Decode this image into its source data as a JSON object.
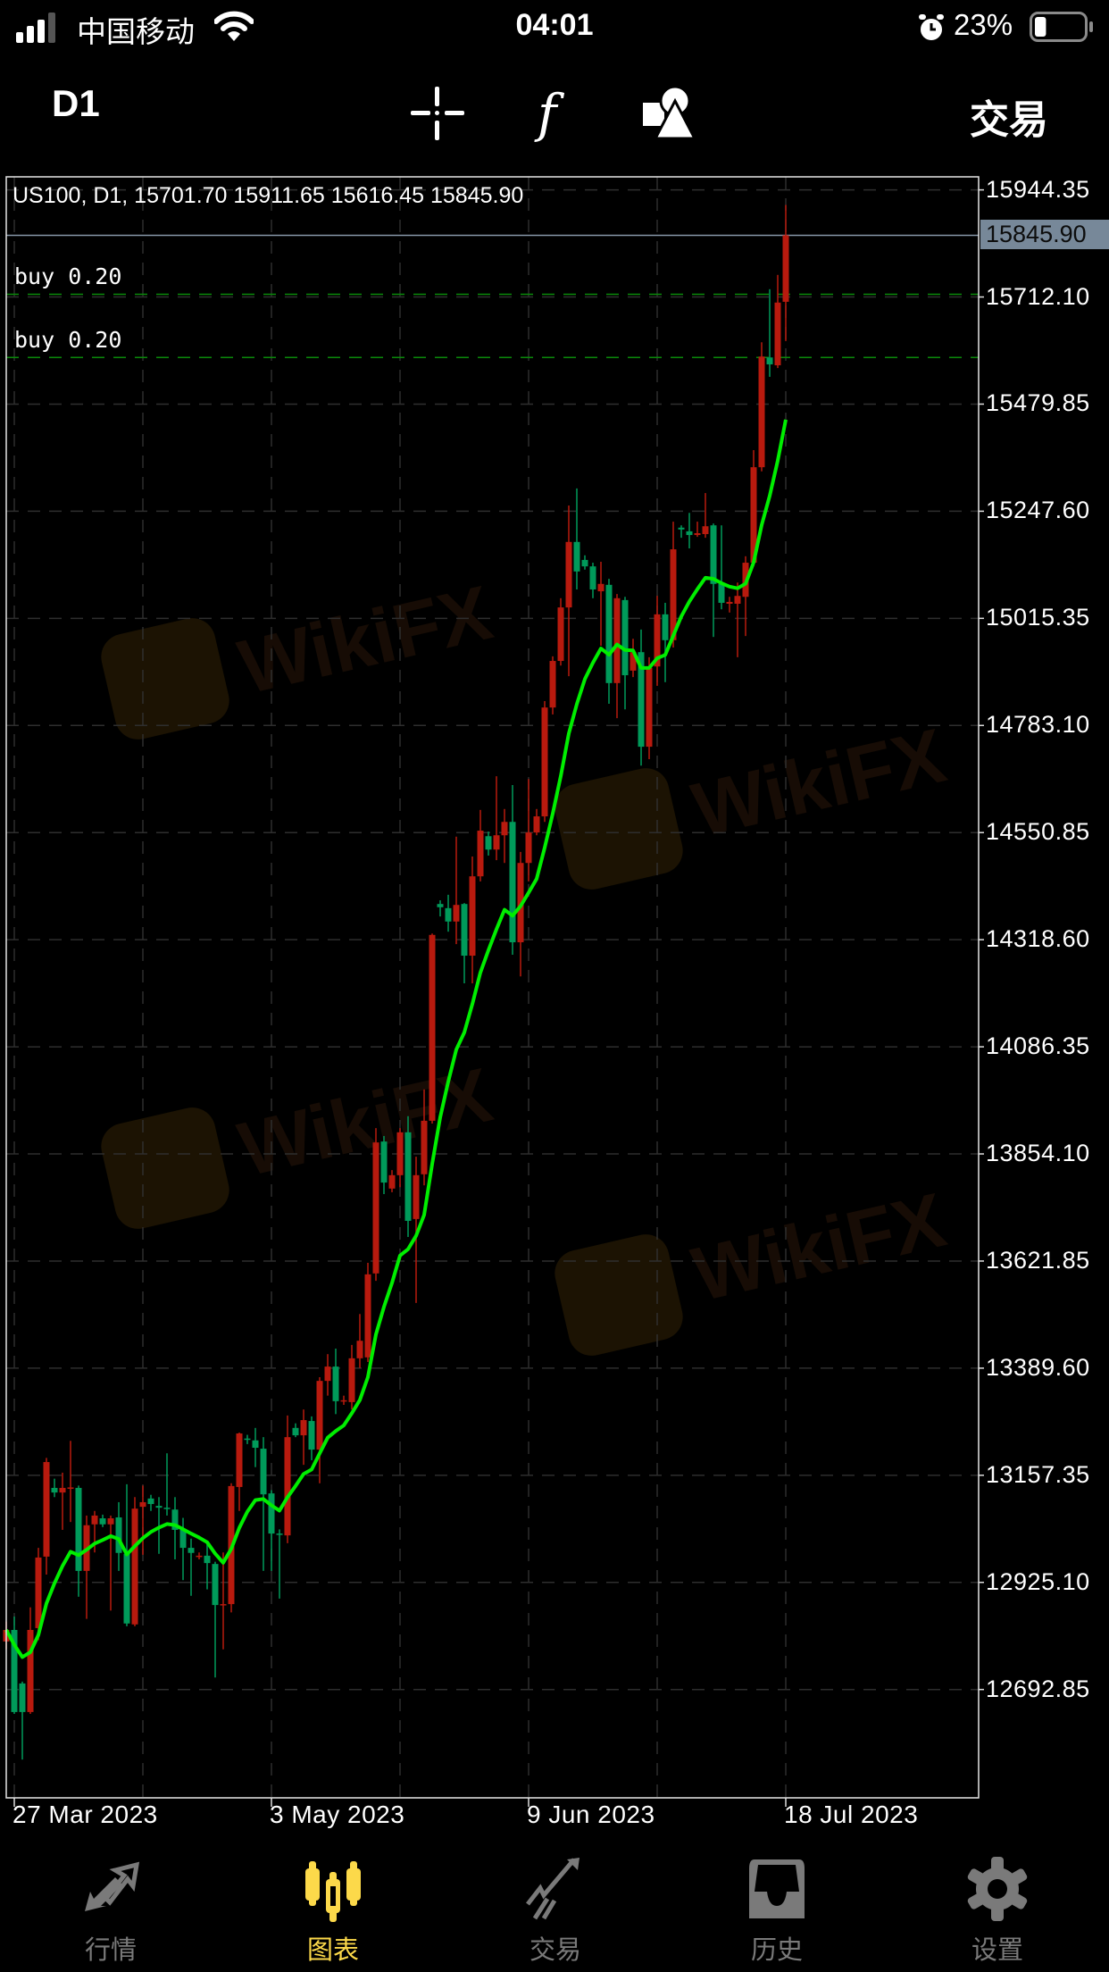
{
  "status_bar": {
    "carrier": "中国移动",
    "time": "04:01",
    "battery_percent": "23%",
    "battery_level": 0.23,
    "signal_bars": 3,
    "icons": [
      "signal-icon",
      "wifi-icon",
      "alarm-icon",
      "battery-icon"
    ]
  },
  "toolbar": {
    "timeframe": "D1",
    "trade_label": "交易",
    "icons": [
      "crosshair-icon",
      "function-icon",
      "objects-icon"
    ]
  },
  "watermark": "WikiFX",
  "colors": {
    "up": "#b81a0e",
    "down": "#009a5a",
    "ma": "#00ee00",
    "buy_line": "#0a8a0a",
    "current_price_bg": "#778899",
    "active_tab": "#fcd94a",
    "inactive_tab": "#7a7a7a"
  },
  "chart_data": {
    "type": "candlestick",
    "title": "US100, D1, 15701.70 15911.65 15616.45 15845.90",
    "symbol": "US100",
    "timeframe": "D1",
    "last_ohlc": {
      "open": "15701.70",
      "high": "15911.65",
      "low": "15616.45",
      "close": "15845.90"
    },
    "current_price": "15845.90",
    "grid": true,
    "y_ticks": [
      "15944.35",
      "15712.10",
      "15479.85",
      "15247.60",
      "15015.35",
      "14783.10",
      "14550.85",
      "14318.60",
      "14086.35",
      "13854.10",
      "13621.85",
      "13389.60",
      "13157.35",
      "12925.10",
      "12692.85"
    ],
    "x_ticks": [
      {
        "label": "27 Mar 2023",
        "bar": 1
      },
      {
        "label": "3 May 2023",
        "bar": 33
      },
      {
        "label": "9 Jun 2023",
        "bar": 65
      },
      {
        "label": "18 Jul 2023",
        "bar": 97
      }
    ],
    "orders": [
      {
        "label": "buy 0.20",
        "price": 15718
      },
      {
        "label": "buy 0.20",
        "price": 15581
      }
    ],
    "indicator": {
      "type": "moving average"
    },
    "ohlc": [
      [
        12797,
        12840,
        12780,
        12822
      ],
      [
        12822,
        12851,
        12640,
        12644
      ],
      [
        12706,
        12710,
        12541,
        12644
      ],
      [
        12644,
        12871,
        12640,
        12822
      ],
      [
        12826,
        13000,
        12800,
        12979
      ],
      [
        12981,
        13195,
        12942,
        13186
      ],
      [
        13130,
        13150,
        13110,
        13120
      ],
      [
        13120,
        13163,
        13039,
        13130
      ],
      [
        13130,
        13232,
        13056,
        13131
      ],
      [
        13130,
        13135,
        12894,
        12950
      ],
      [
        12950,
        13070,
        12846,
        13049
      ],
      [
        13051,
        13080,
        12990,
        13070
      ],
      [
        13064,
        13072,
        13045,
        13051
      ],
      [
        13051,
        13070,
        12864,
        13064
      ],
      [
        13066,
        13099,
        12950,
        12989
      ],
      [
        12987,
        13138,
        12830,
        12836
      ],
      [
        12834,
        13110,
        12830,
        13085
      ],
      [
        13089,
        13135,
        12985,
        13099
      ],
      [
        13107,
        13115,
        13080,
        13095
      ],
      [
        13091,
        13110,
        12987,
        13087
      ],
      [
        13087,
        13205,
        13070,
        13086
      ],
      [
        13083,
        13110,
        12975,
        13039
      ],
      [
        13039,
        13065,
        12930,
        13000
      ],
      [
        13000,
        13020,
        12896,
        12989
      ],
      [
        12980,
        12990,
        12975,
        12983
      ],
      [
        12983,
        13010,
        12910,
        12967
      ],
      [
        12965,
        12970,
        12719,
        12876
      ],
      [
        12876,
        12990,
        12780,
        12878
      ],
      [
        12878,
        13140,
        12860,
        13134
      ],
      [
        13132,
        13250,
        13080,
        13248
      ],
      [
        13237,
        13245,
        13225,
        13236
      ],
      [
        13233,
        13260,
        13175,
        13217
      ],
      [
        13215,
        13240,
        12950,
        13116
      ],
      [
        13118,
        13125,
        12950,
        13031
      ],
      [
        13031,
        13040,
        12890,
        13029
      ],
      [
        13027,
        13287,
        13010,
        13240
      ],
      [
        13260,
        13270,
        13240,
        13244
      ],
      [
        13244,
        13300,
        13180,
        13277
      ],
      [
        13275,
        13285,
        13190,
        13213
      ],
      [
        13213,
        13370,
        13140,
        13362
      ],
      [
        13362,
        13420,
        13330,
        13393
      ],
      [
        13393,
        13432,
        13290,
        13318
      ],
      [
        13318,
        13330,
        13310,
        13320
      ],
      [
        13316,
        13440,
        13300,
        13411
      ],
      [
        13411,
        13507,
        13390,
        13449
      ],
      [
        13413,
        13618,
        13403,
        13593
      ],
      [
        13595,
        13910,
        13579,
        13879
      ],
      [
        13881,
        13893,
        13767,
        13792
      ],
      [
        13779,
        13819,
        13771,
        13808
      ],
      [
        13808,
        13910,
        13782,
        13901
      ],
      [
        13901,
        13936,
        13674,
        13709
      ],
      [
        13713,
        13848,
        13531,
        13808
      ],
      [
        13810,
        13994,
        13786,
        13926
      ],
      [
        13926,
        14332,
        13920,
        14329
      ],
      [
        14396,
        14404,
        14369,
        14389
      ],
      [
        14387,
        14416,
        14336,
        14358
      ],
      [
        14358,
        14542,
        14309,
        14394
      ],
      [
        14396,
        14398,
        14224,
        14284
      ],
      [
        14284,
        14499,
        14224,
        14456
      ],
      [
        14456,
        14600,
        14445,
        14555
      ],
      [
        14543,
        14553,
        14501,
        14514
      ],
      [
        14514,
        14673,
        14491,
        14545
      ],
      [
        14545,
        14602,
        14485,
        14574
      ],
      [
        14574,
        14654,
        14286,
        14313
      ],
      [
        14313,
        14509,
        14239,
        14485
      ],
      [
        14485,
        14667,
        14445,
        14551
      ],
      [
        14551,
        14602,
        14545,
        14586
      ],
      [
        14586,
        14836,
        14574,
        14822
      ],
      [
        14822,
        14933,
        14807,
        14923
      ],
      [
        14923,
        15059,
        14913,
        15039
      ],
      [
        15039,
        15260,
        14890,
        15181
      ],
      [
        15181,
        15297,
        15078,
        15117
      ],
      [
        15142,
        15152,
        15121,
        15128
      ],
      [
        15128,
        15136,
        15059,
        15078
      ],
      [
        15074,
        15138,
        14956,
        15090
      ],
      [
        15088,
        15101,
        14830,
        14875
      ],
      [
        14875,
        15068,
        14799,
        15059
      ],
      [
        15055,
        15062,
        14818,
        14892
      ],
      [
        14902,
        14971,
        14888,
        14942
      ],
      [
        14942,
        14991,
        14696,
        14737
      ],
      [
        14737,
        14931,
        14710,
        14908
      ],
      [
        14911,
        15064,
        14869,
        15024
      ],
      [
        15024,
        15049,
        14877,
        14968
      ],
      [
        14968,
        15225,
        14952,
        15165
      ],
      [
        15212,
        15217,
        15190,
        15208
      ],
      [
        15204,
        15244,
        15167,
        15196
      ],
      [
        15196,
        15225,
        15192,
        15200
      ],
      [
        15198,
        15287,
        15190,
        15215
      ],
      [
        15217,
        15221,
        14975,
        15090
      ],
      [
        15090,
        15217,
        15035,
        15049
      ],
      [
        15047,
        15062,
        15028,
        15051
      ],
      [
        15047,
        15093,
        14931,
        15064
      ],
      [
        15062,
        15150,
        14977,
        15136
      ],
      [
        15136,
        15380,
        15128,
        15343
      ],
      [
        15343,
        15614,
        15334,
        15583
      ],
      [
        15581,
        15729,
        15539,
        15566
      ],
      [
        15564,
        15760,
        15558,
        15700
      ],
      [
        15701.7,
        15911.65,
        15616.45,
        15845.9
      ]
    ]
  },
  "bottom_nav": {
    "active_index": 1,
    "items": [
      {
        "label": "行情",
        "icon": "quotes-arrows-icon"
      },
      {
        "label": "图表",
        "icon": "candlestick-chart-icon"
      },
      {
        "label": "交易",
        "icon": "trade-trend-icon"
      },
      {
        "label": "历史",
        "icon": "history-inbox-icon"
      },
      {
        "label": "设置",
        "icon": "settings-gear-icon"
      }
    ]
  }
}
